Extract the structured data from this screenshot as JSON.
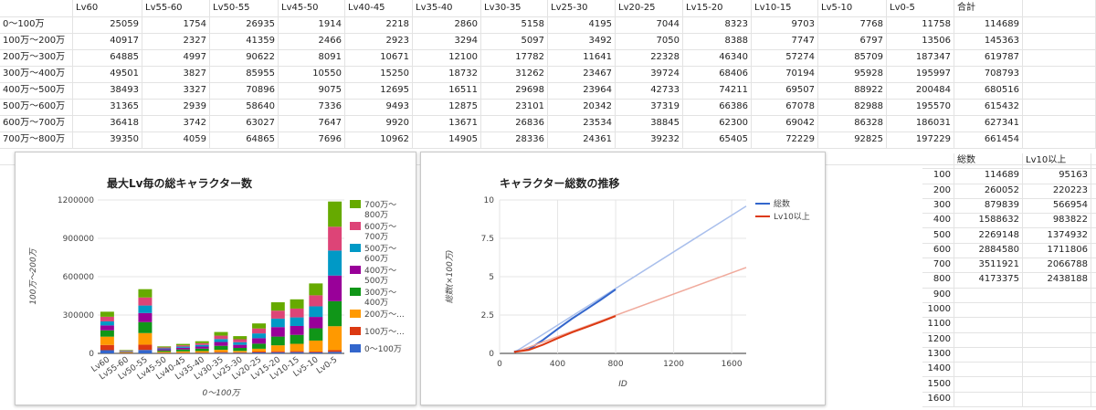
{
  "table": {
    "headers": [
      "",
      "Lv60",
      "Lv55-60",
      "Lv50-55",
      "Lv45-50",
      "Lv40-45",
      "Lv35-40",
      "Lv30-35",
      "Lv25-30",
      "Lv20-25",
      "Lv15-20",
      "Lv10-15",
      "Lv5-10",
      "Lv0-5",
      "合計"
    ],
    "rows": [
      {
        "label": "0〜100万",
        "values": [
          25059,
          1754,
          26935,
          1914,
          2218,
          2860,
          5158,
          4195,
          7044,
          8323,
          9703,
          7768,
          11758,
          114689
        ]
      },
      {
        "label": "100万〜200万",
        "values": [
          40917,
          2327,
          41359,
          2466,
          2923,
          3294,
          5097,
          3492,
          7050,
          8388,
          7747,
          6797,
          13506,
          145363
        ]
      },
      {
        "label": "200万〜300万",
        "values": [
          64885,
          4997,
          90622,
          8091,
          10671,
          12100,
          17782,
          11641,
          22328,
          46340,
          57274,
          85709,
          187347,
          619787
        ]
      },
      {
        "label": "300万〜400万",
        "values": [
          49501,
          3827,
          85955,
          10550,
          15250,
          18732,
          31262,
          23467,
          39724,
          68406,
          70194,
          95928,
          195997,
          708793
        ]
      },
      {
        "label": "400万〜500万",
        "values": [
          38493,
          3327,
          70896,
          9075,
          12695,
          16511,
          29698,
          23964,
          42733,
          74211,
          69507,
          88922,
          200484,
          680516
        ]
      },
      {
        "label": "500万〜600万",
        "values": [
          31365,
          2939,
          58640,
          7336,
          9493,
          12875,
          23101,
          20342,
          37319,
          66386,
          67078,
          82988,
          195570,
          615432
        ]
      },
      {
        "label": "600万〜700万",
        "values": [
          36418,
          3742,
          63027,
          7647,
          9920,
          13671,
          26836,
          23534,
          38845,
          62300,
          69042,
          86328,
          186031,
          627341
        ]
      },
      {
        "label": "700万〜800万",
        "values": [
          39350,
          4059,
          64865,
          7696,
          10962,
          14905,
          28336,
          24361,
          39232,
          65405,
          72229,
          92825,
          197229,
          661454
        ]
      }
    ]
  },
  "side_table": {
    "headers": [
      "",
      "総数",
      "Lv10以上"
    ],
    "rows": [
      {
        "id": "100",
        "total": "114689",
        "lv10": "95163"
      },
      {
        "id": "200",
        "total": "260052",
        "lv10": "220223"
      },
      {
        "id": "300",
        "total": "879839",
        "lv10": "566954"
      },
      {
        "id": "400",
        "total": "1588632",
        "lv10": "983822"
      },
      {
        "id": "500",
        "total": "2269148",
        "lv10": "1374932"
      },
      {
        "id": "600",
        "total": "2884580",
        "lv10": "1711806"
      },
      {
        "id": "700",
        "total": "3511921",
        "lv10": "2066788"
      },
      {
        "id": "800",
        "total": "4173375",
        "lv10": "2438188"
      },
      {
        "id": "900",
        "total": "",
        "lv10": ""
      },
      {
        "id": "1000",
        "total": "",
        "lv10": ""
      },
      {
        "id": "1100",
        "total": "",
        "lv10": ""
      },
      {
        "id": "1200",
        "total": "",
        "lv10": ""
      },
      {
        "id": "1300",
        "total": "",
        "lv10": ""
      },
      {
        "id": "1400",
        "total": "",
        "lv10": ""
      },
      {
        "id": "1500",
        "total": "",
        "lv10": ""
      },
      {
        "id": "1600",
        "total": "",
        "lv10": ""
      }
    ]
  },
  "chart_data": [
    {
      "type": "bar",
      "stacked": true,
      "title": "最大Lv毎の総キャラクター数",
      "xlabel": "0〜100万",
      "ylabel": "100万〜200万",
      "ylim": [
        0,
        1200000
      ],
      "yticks": [
        "0",
        "300000",
        "600000",
        "900000",
        "1200000"
      ],
      "ytick_values": [
        0,
        300000,
        600000,
        900000,
        1200000
      ],
      "categories": [
        "Lv60",
        "Lv55-60",
        "Lv50-55",
        "Lv45-50",
        "Lv40-45",
        "Lv35-40",
        "Lv30-35",
        "Lv25-30",
        "Lv20-25",
        "Lv15-20",
        "Lv10-15",
        "Lv5-10",
        "Lv0-5"
      ],
      "legend_position": "right",
      "series": [
        {
          "name": "0〜100万",
          "legend_label": [
            "0〜100万"
          ],
          "color": "#3366cc",
          "values": [
            25059,
            1754,
            26935,
            1914,
            2218,
            2860,
            5158,
            4195,
            7044,
            8323,
            9703,
            7768,
            11758
          ]
        },
        {
          "name": "100万〜200万",
          "legend_label": [
            "100万〜..."
          ],
          "color": "#dc3912",
          "values": [
            40917,
            2327,
            41359,
            2466,
            2923,
            3294,
            5097,
            3492,
            7050,
            8388,
            7747,
            6797,
            13506
          ]
        },
        {
          "name": "200万〜300万",
          "legend_label": [
            "200万〜..."
          ],
          "color": "#ff9900",
          "values": [
            64885,
            4997,
            90622,
            8091,
            10671,
            12100,
            17782,
            11641,
            22328,
            46340,
            57274,
            85709,
            187347
          ]
        },
        {
          "name": "300万〜400万",
          "legend_label": [
            "300万〜",
            "400万"
          ],
          "color": "#109618",
          "values": [
            49501,
            3827,
            85955,
            10550,
            15250,
            18732,
            31262,
            23467,
            39724,
            68406,
            70194,
            95928,
            195997
          ]
        },
        {
          "name": "400万〜500万",
          "legend_label": [
            "400万〜",
            "500万"
          ],
          "color": "#990099",
          "values": [
            38493,
            3327,
            70896,
            9075,
            12695,
            16511,
            29698,
            23964,
            42733,
            74211,
            69507,
            88922,
            200484
          ]
        },
        {
          "name": "500万〜600万",
          "legend_label": [
            "500万〜",
            "600万"
          ],
          "color": "#0099c6",
          "values": [
            31365,
            2939,
            58640,
            7336,
            9493,
            12875,
            23101,
            20342,
            37319,
            66386,
            67078,
            82988,
            195570
          ]
        },
        {
          "name": "600万〜700万",
          "legend_label": [
            "600万〜",
            "700万"
          ],
          "color": "#dd4477",
          "values": [
            36418,
            3742,
            63027,
            7647,
            9920,
            13671,
            26836,
            23534,
            38845,
            62300,
            69042,
            86328,
            186031
          ]
        },
        {
          "name": "700万〜800万",
          "legend_label": [
            "700万〜",
            "800万"
          ],
          "color": "#66aa00",
          "values": [
            39350,
            4059,
            64865,
            7696,
            10962,
            14905,
            28336,
            24361,
            39232,
            65405,
            72229,
            92825,
            197229
          ]
        }
      ]
    },
    {
      "type": "line",
      "title": "キャラクター総数の推移",
      "xlabel": "ID",
      "ylabel": "総数(×100万)",
      "xlim": [
        0,
        1700
      ],
      "ylim": [
        0,
        10
      ],
      "xticks": [
        "0",
        "400",
        "800",
        "1200",
        "1600"
      ],
      "xtick_values": [
        0,
        400,
        800,
        1200,
        1600
      ],
      "yticks": [
        "0",
        "2.5",
        "5",
        "7.5",
        "10"
      ],
      "ytick_values": [
        0,
        2.5,
        5,
        7.5,
        10
      ],
      "legend_position": "right",
      "series": [
        {
          "name": "総数",
          "color": "#3366cc",
          "trend_color": "#a9bfec",
          "x": [
            100,
            200,
            300,
            400,
            500,
            600,
            700,
            800
          ],
          "y": [
            0.114689,
            0.260052,
            0.879839,
            1.588632,
            2.269148,
            2.88458,
            3.511921,
            4.173375
          ],
          "trend": [
            [
              100,
              0.05
            ],
            [
              1700,
              9.6
            ]
          ]
        },
        {
          "name": "Lv10以上",
          "color": "#dc3912",
          "trend_color": "#f0aa9c",
          "x": [
            100,
            200,
            300,
            400,
            500,
            600,
            700,
            800
          ],
          "y": [
            0.095163,
            0.220223,
            0.566954,
            0.983822,
            1.374932,
            1.711806,
            2.066788,
            2.438188
          ],
          "trend": [
            [
              100,
              0.05
            ],
            [
              1700,
              5.6
            ]
          ]
        }
      ]
    }
  ]
}
